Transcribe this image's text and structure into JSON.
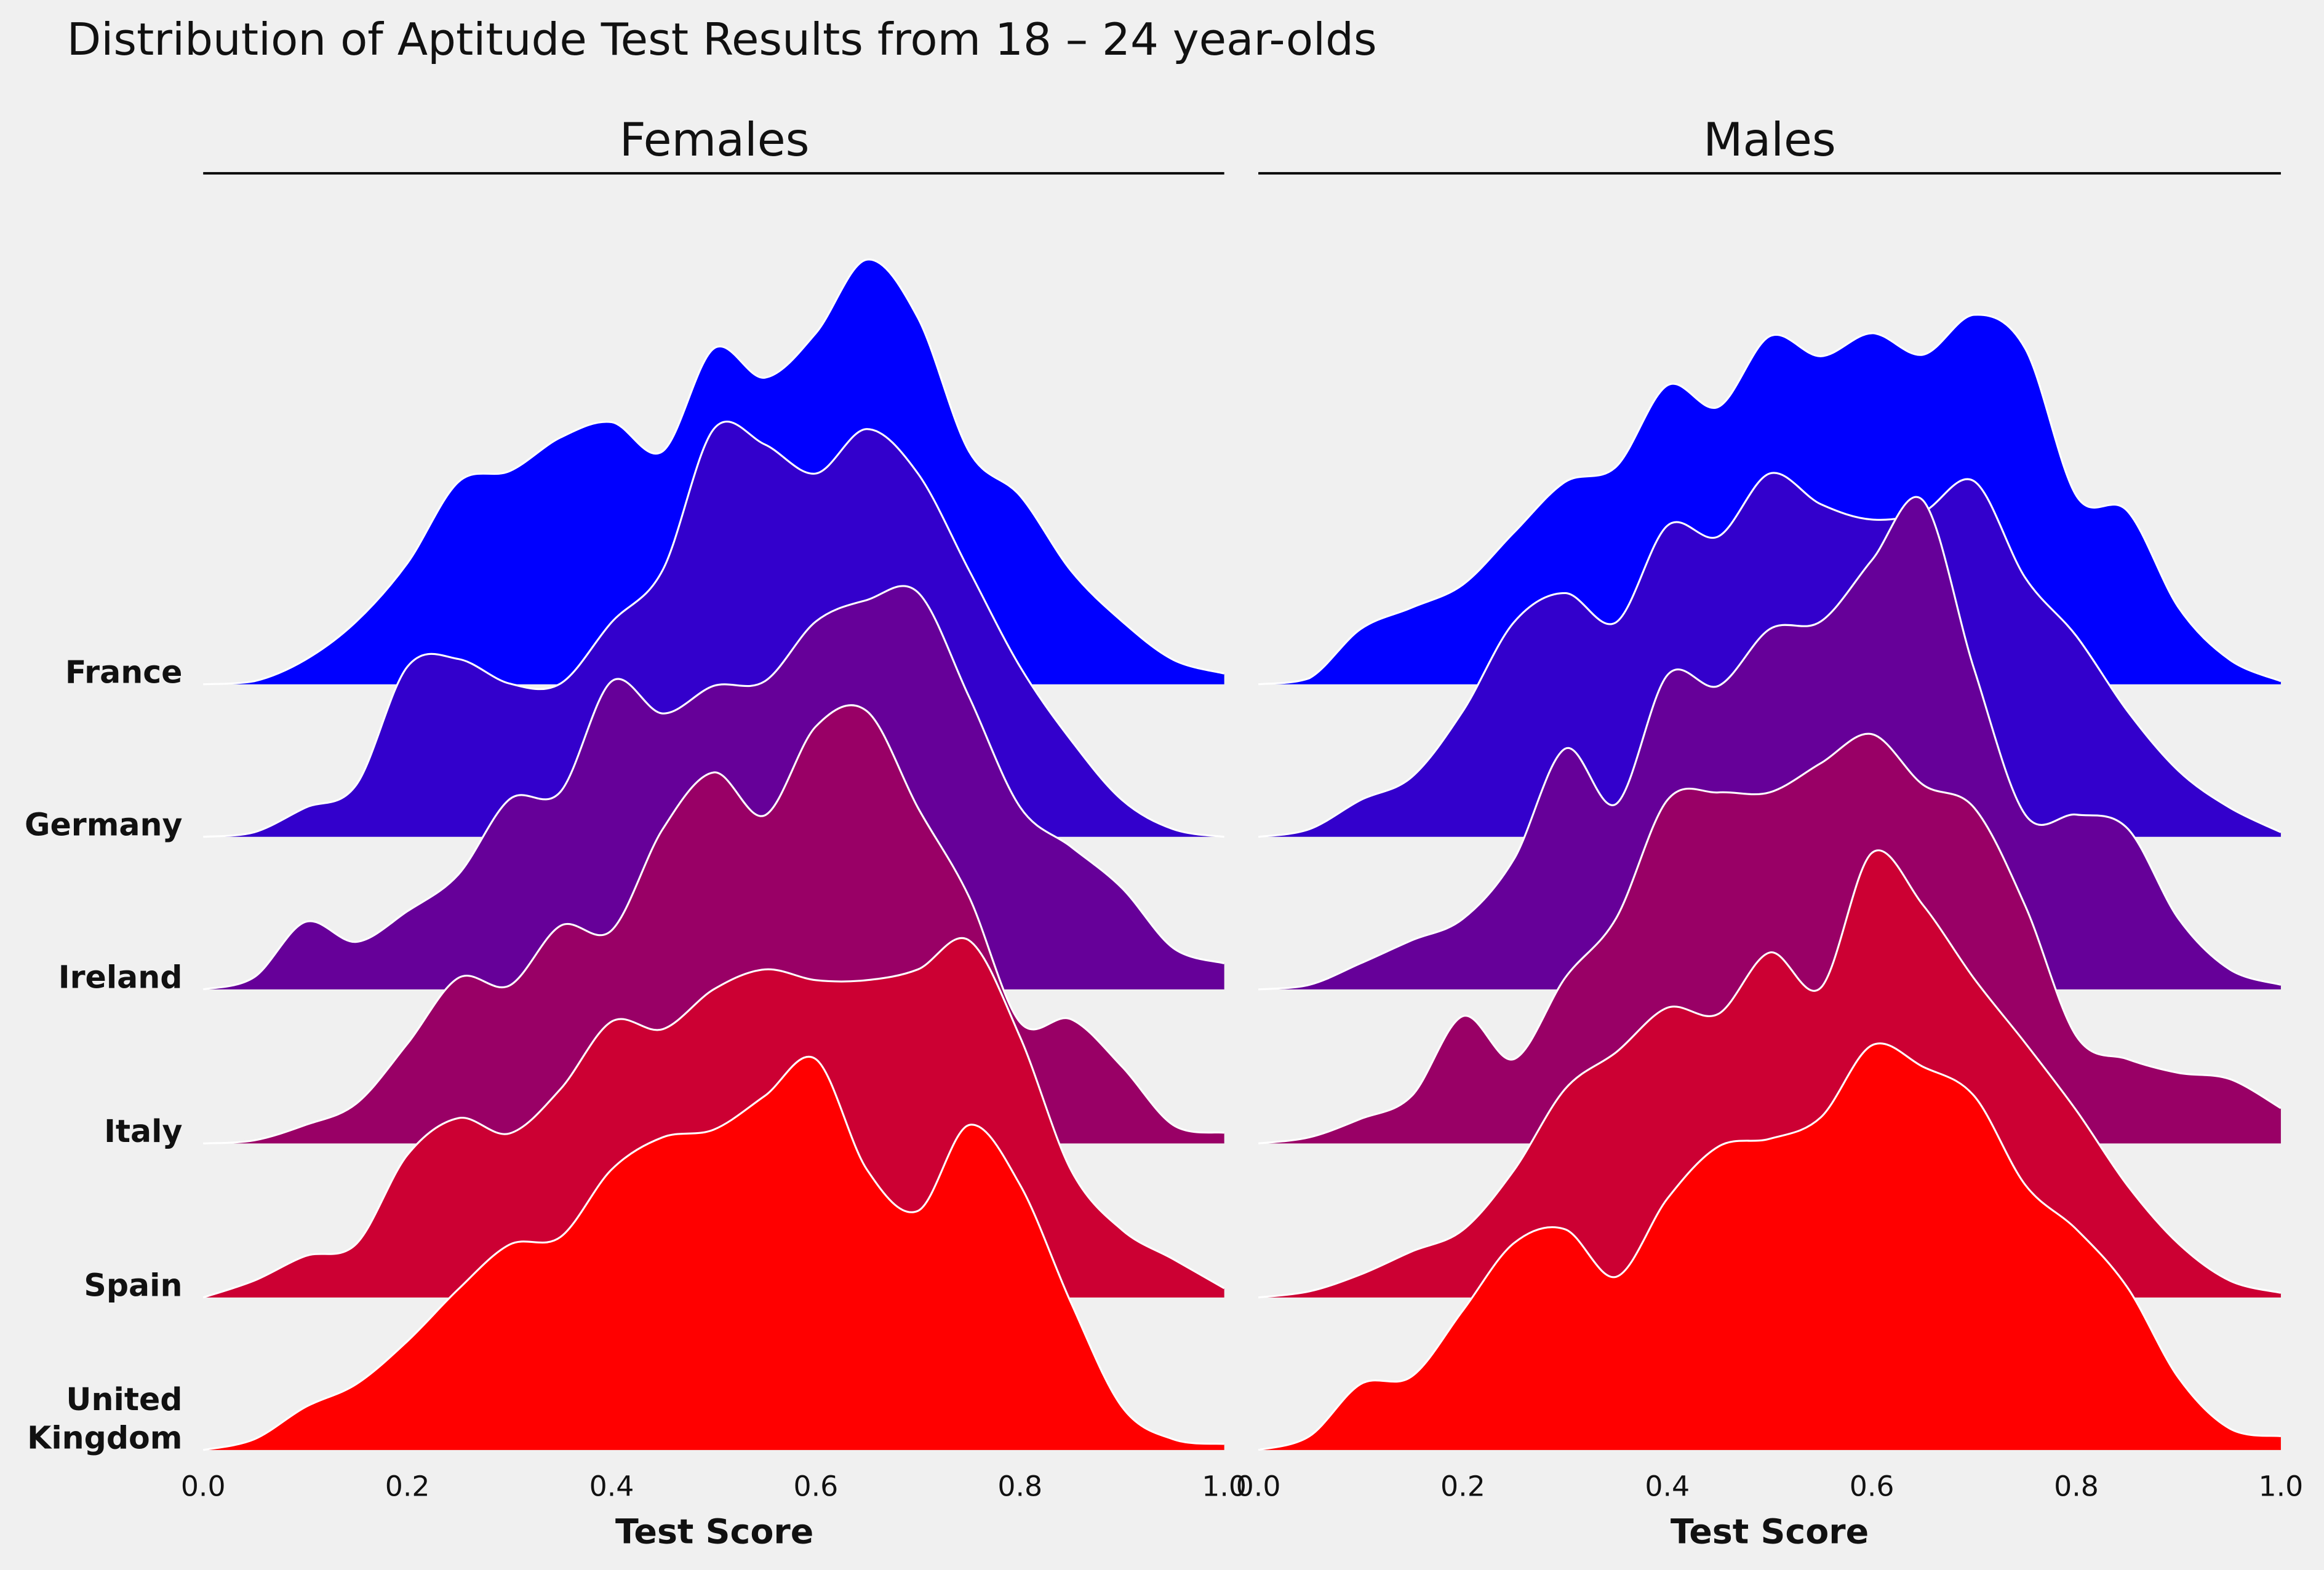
{
  "chart_data": {
    "type": "ridgeline",
    "title": "Distribution of Aptitude Test Results from 18 – 24 year-olds",
    "xlabel": "Test Score",
    "xlim": [
      0,
      1
    ],
    "xticks": [
      "0.0",
      "0.2",
      "0.4",
      "0.6",
      "0.8",
      "1.0"
    ],
    "grid": false,
    "x": [
      0,
      0.05,
      0.1,
      0.15,
      0.2,
      0.25,
      0.3,
      0.35,
      0.4,
      0.45,
      0.5,
      0.55,
      0.6,
      0.65,
      0.7,
      0.75,
      0.8,
      0.85,
      0.9,
      0.95,
      1.0
    ],
    "categories": [
      "France",
      "Germany",
      "Ireland",
      "Italy",
      "Spain",
      "United Kingdom"
    ],
    "category_label_lines": [
      [
        "France"
      ],
      [
        "Germany"
      ],
      [
        "Ireland"
      ],
      [
        "Italy"
      ],
      [
        "Spain"
      ],
      [
        "United",
        "Kingdom"
      ]
    ],
    "colors": [
      "#0000ff",
      "#3300cc",
      "#660099",
      "#990066",
      "#cc0033",
      "#ff0000"
    ],
    "outline_color": "#ffffff",
    "panels": [
      {
        "name": "Females",
        "series": [
          {
            "name": "France",
            "values": [
              0,
              0.02,
              0.16,
              0.41,
              0.79,
              1.32,
              1.39,
              1.61,
              1.71,
              1.52,
              2.19,
              2.0,
              2.29,
              2.77,
              2.39,
              1.52,
              1.23,
              0.74,
              0.41,
              0.16,
              0.07
            ]
          },
          {
            "name": "Germany",
            "values": [
              0,
              0.03,
              0.19,
              0.34,
              1.11,
              1.16,
              1.0,
              1.0,
              1.4,
              1.74,
              2.66,
              2.56,
              2.37,
              2.66,
              2.37,
              1.74,
              1.11,
              0.63,
              0.24,
              0.05,
              0
            ]
          },
          {
            "name": "Ireland",
            "values": [
              0,
              0.08,
              0.44,
              0.31,
              0.51,
              0.75,
              1.24,
              1.29,
              2.01,
              1.8,
              1.98,
              2.01,
              2.4,
              2.54,
              2.59,
              1.91,
              1.19,
              0.93,
              0.66,
              0.27,
              0.17
            ]
          },
          {
            "name": "Italy",
            "values": [
              0,
              0.02,
              0.12,
              0.26,
              0.65,
              1.08,
              1.03,
              1.42,
              1.39,
              2.05,
              2.42,
              2.14,
              2.72,
              2.82,
              2.19,
              1.61,
              0.79,
              0.81,
              0.5,
              0.12,
              0.07
            ]
          },
          {
            "name": "Spain",
            "values": [
              0,
              0.11,
              0.27,
              0.35,
              0.93,
              1.17,
              1.07,
              1.36,
              1.8,
              1.75,
              2.01,
              2.14,
              2.07,
              2.07,
              2.14,
              2.33,
              1.7,
              0.83,
              0.44,
              0.25,
              0.06
            ]
          },
          {
            "name": "United Kingdom",
            "values": [
              0,
              0.07,
              0.28,
              0.43,
              0.71,
              1.05,
              1.34,
              1.39,
              1.83,
              2.04,
              2.09,
              2.31,
              2.55,
              1.83,
              1.56,
              2.12,
              1.73,
              0.96,
              0.28,
              0.07,
              0.04
            ]
          }
        ]
      },
      {
        "name": "Males",
        "series": [
          {
            "name": "France",
            "values": [
              0,
              0.04,
              0.36,
              0.5,
              0.65,
              0.99,
              1.32,
              1.42,
              1.95,
              1.81,
              2.27,
              2.14,
              2.29,
              2.15,
              2.41,
              2.19,
              1.23,
              1.13,
              0.5,
              0.16,
              0.02
            ]
          },
          {
            "name": "Germany",
            "values": [
              0,
              0.05,
              0.24,
              0.39,
              0.82,
              1.4,
              1.59,
              1.4,
              2.03,
              1.96,
              2.37,
              2.17,
              2.07,
              2.12,
              2.32,
              1.69,
              1.31,
              0.82,
              0.43,
              0.19,
              0.03
            ]
          },
          {
            "name": "Ireland",
            "values": [
              0,
              0.03,
              0.17,
              0.32,
              0.46,
              0.85,
              1.57,
              1.21,
              2.05,
              1.98,
              2.35,
              2.4,
              2.8,
              3.19,
              2.09,
              1.14,
              1.14,
              1.05,
              0.46,
              0.13,
              0.03
            ]
          },
          {
            "name": "Italy",
            "values": [
              0,
              0.04,
              0.16,
              0.31,
              0.83,
              0.55,
              1.08,
              1.47,
              2.24,
              2.29,
              2.29,
              2.48,
              2.67,
              2.34,
              2.19,
              1.55,
              0.7,
              0.55,
              0.46,
              0.42,
              0.23
            ]
          },
          {
            "name": "Spain",
            "values": [
              0,
              0.04,
              0.15,
              0.3,
              0.44,
              0.83,
              1.36,
              1.6,
              1.89,
              1.85,
              2.25,
              2.02,
              2.9,
              2.56,
              2.08,
              1.66,
              1.22,
              0.73,
              0.35,
              0.11,
              0.03
            ]
          },
          {
            "name": "United Kingdom",
            "values": [
              0,
              0.09,
              0.43,
              0.48,
              0.91,
              1.35,
              1.44,
              1.13,
              1.64,
              1.98,
              2.03,
              2.17,
              2.64,
              2.5,
              2.31,
              1.73,
              1.44,
              1.06,
              0.47,
              0.14,
              0.09
            ]
          }
        ]
      }
    ]
  }
}
